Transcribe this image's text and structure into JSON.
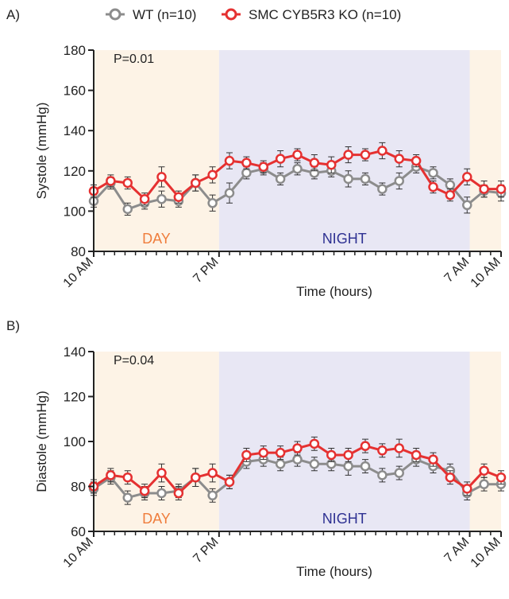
{
  "legend": {
    "items": [
      {
        "label": "WT (n=10)",
        "color": "#8c8c8c"
      },
      {
        "label": "SMC CYB5R3 KO (n=10)",
        "color": "#e53131"
      }
    ]
  },
  "colors": {
    "day_band": "#fdf3e6",
    "night_band": "#e8e7f4",
    "day_text": "#ef7d3c",
    "night_text": "#2e3192",
    "axis": "#222222"
  },
  "chart_data": [
    {
      "panel_label": "A)",
      "type": "line",
      "ylabel": "Systole (mmHg)",
      "xlabel": "Time (hours)",
      "ylim": [
        80,
        180
      ],
      "yticks": [
        80,
        100,
        120,
        140,
        160,
        180
      ],
      "xtick_labels": [
        "10 AM",
        "7 PM",
        "7 AM",
        "10 AM"
      ],
      "xtick_index": [
        0,
        12,
        36,
        39
      ],
      "pvalue": "P=0.01",
      "bands": [
        {
          "label": "DAY",
          "kind": "day",
          "from": 0,
          "to": 12
        },
        {
          "label": "NIGHT",
          "kind": "night",
          "from": 12,
          "to": 36
        },
        {
          "label": "",
          "kind": "day",
          "from": 36,
          "to": 39
        }
      ],
      "series": [
        {
          "name": "WT (n=10)",
          "color": "#8c8c8c",
          "values": [
            105,
            114,
            101,
            104,
            106,
            105,
            114,
            104,
            109,
            119,
            121,
            116,
            121,
            119,
            120,
            116,
            116,
            111,
            115,
            122,
            119,
            113,
            103,
            110,
            109
          ],
          "errors": [
            3,
            3,
            3,
            3,
            4,
            3,
            4,
            4,
            5,
            3,
            3,
            3,
            3,
            3,
            3,
            4,
            3,
            3,
            4,
            3,
            3,
            3,
            4,
            3,
            4
          ]
        },
        {
          "name": "SMC CYB5R3 KO (n=10)",
          "color": "#e53131",
          "values": [
            110,
            115,
            114,
            106,
            117,
            107,
            114,
            118,
            125,
            124,
            122,
            126,
            128,
            124,
            123,
            128,
            128,
            130,
            126,
            125,
            112,
            108,
            117,
            111,
            111
          ],
          "errors": [
            3,
            3,
            3,
            3,
            5,
            3,
            4,
            4,
            4,
            3,
            3,
            4,
            3,
            4,
            4,
            4,
            3,
            4,
            4,
            3,
            3,
            3,
            4,
            4,
            4
          ]
        }
      ]
    },
    {
      "panel_label": "B)",
      "type": "line",
      "ylabel": "Diastole (mmHg)",
      "xlabel": "Time (hours)",
      "ylim": [
        60,
        140
      ],
      "yticks": [
        60,
        80,
        100,
        120,
        140
      ],
      "xtick_labels": [
        "10 AM",
        "7 PM",
        "7 AM",
        "10 AM"
      ],
      "xtick_index": [
        0,
        12,
        36,
        39
      ],
      "pvalue": "P=0.04",
      "bands": [
        {
          "label": "DAY",
          "kind": "day",
          "from": 0,
          "to": 12
        },
        {
          "label": "NIGHT",
          "kind": "night",
          "from": 12,
          "to": 36
        },
        {
          "label": "",
          "kind": "day",
          "from": 36,
          "to": 39
        }
      ],
      "series": [
        {
          "name": "WT (n=10)",
          "color": "#8c8c8c",
          "values": [
            79,
            84,
            75,
            77,
            77,
            78,
            84,
            76,
            82,
            91,
            92,
            90,
            92,
            90,
            90,
            89,
            89,
            85,
            86,
            92,
            89,
            87,
            77,
            81,
            81
          ],
          "errors": [
            3,
            3,
            3,
            3,
            3,
            3,
            4,
            3,
            3,
            3,
            3,
            3,
            3,
            3,
            3,
            4,
            3,
            3,
            3,
            3,
            3,
            3,
            3,
            3,
            3
          ]
        },
        {
          "name": "SMC CYB5R3 KO (n=10)",
          "color": "#e53131",
          "values": [
            80,
            85,
            84,
            78,
            86,
            77,
            84,
            86,
            82,
            94,
            95,
            95,
            97,
            99,
            94,
            94,
            98,
            96,
            97,
            94,
            92,
            84,
            79,
            87,
            84
          ],
          "errors": [
            3,
            3,
            3,
            3,
            4,
            3,
            4,
            4,
            3,
            3,
            3,
            3,
            3,
            3,
            3,
            3,
            3,
            3,
            4,
            3,
            3,
            3,
            3,
            3,
            3
          ]
        }
      ]
    }
  ]
}
